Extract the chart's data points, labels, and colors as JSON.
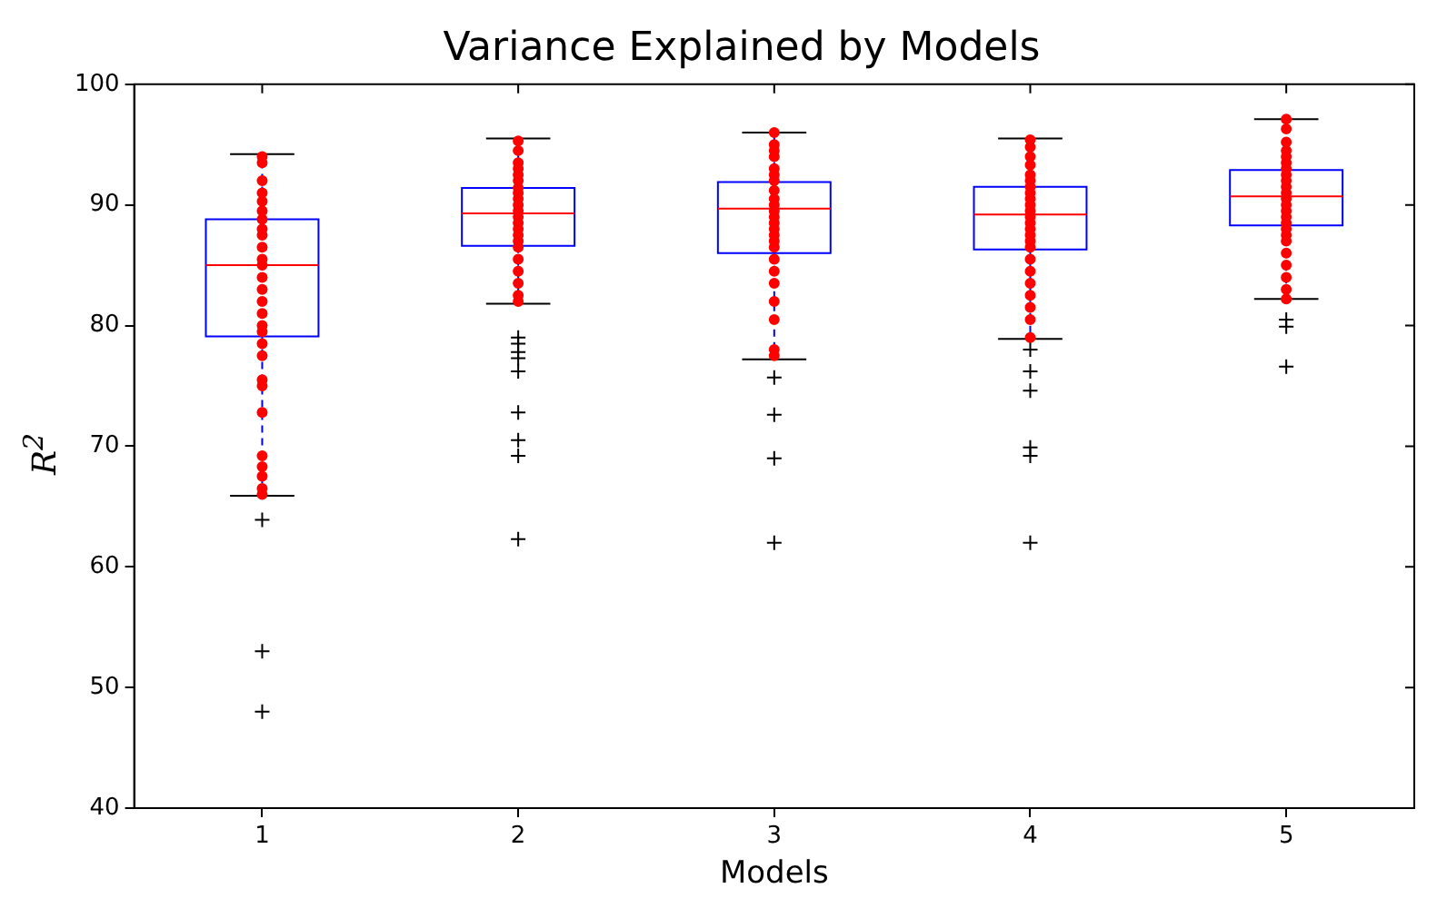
{
  "chart_data": {
    "type": "box",
    "title": "Variance Explained by Models",
    "xlabel": "Models",
    "ylabel": "R$^{2}$",
    "categories": [
      "1",
      "2",
      "3",
      "4",
      "5"
    ],
    "ylim": [
      40,
      100
    ],
    "yticks": [
      40,
      50,
      60,
      70,
      80,
      90,
      100
    ],
    "grid": false,
    "legend": false,
    "series": [
      {
        "type": "box",
        "color": "#0000ff",
        "boxes": [
          {
            "low": 65.9,
            "q1": 79.1,
            "median": 85.0,
            "q3": 88.8,
            "high": 94.2,
            "outliers": [
              63.9,
              53.0,
              48.0
            ]
          },
          {
            "low": 81.8,
            "q1": 86.6,
            "median": 89.3,
            "q3": 91.4,
            "high": 95.5,
            "outliers": [
              79.0,
              78.5,
              77.8,
              77.3,
              76.2,
              72.8,
              70.5,
              69.2,
              62.3
            ]
          },
          {
            "low": 77.2,
            "q1": 86.0,
            "median": 89.7,
            "q3": 91.9,
            "high": 96.0,
            "outliers": [
              75.7,
              72.6,
              69.0,
              62.0
            ]
          },
          {
            "low": 78.9,
            "q1": 86.3,
            "median": 89.2,
            "q3": 91.5,
            "high": 95.5,
            "outliers": [
              78.0,
              76.2,
              74.6,
              69.9,
              69.2,
              62.0
            ]
          },
          {
            "low": 82.2,
            "q1": 88.3,
            "median": 90.7,
            "q3": 92.9,
            "high": 97.1,
            "outliers": [
              80.5,
              79.9,
              76.6
            ]
          }
        ]
      },
      {
        "type": "scatter",
        "color": "#ff0000",
        "marker": "circle",
        "x": [
          "1",
          "1",
          "1",
          "1",
          "1",
          "1",
          "1",
          "1",
          "1",
          "1",
          "1",
          "1",
          "1",
          "1",
          "1",
          "1",
          "1",
          "1",
          "1",
          "1",
          "1",
          "1",
          "1",
          "1",
          "1",
          "1",
          "1",
          "1"
        ],
        "values": [
          94,
          93.5,
          92,
          91,
          90.3,
          89.5,
          88.8,
          88,
          87.5,
          86.5,
          85.5,
          85,
          84,
          83,
          82,
          81,
          80,
          79.5,
          78.5,
          77.5,
          75.5,
          75,
          72.8,
          69.2,
          68.3,
          67.5,
          66.5,
          66
        ]
      },
      {
        "type": "scatter",
        "color": "#ff0000",
        "marker": "circle",
        "x": [
          "2",
          "2",
          "2",
          "2",
          "2",
          "2",
          "2",
          "2",
          "2",
          "2",
          "2",
          "2",
          "2",
          "2",
          "2",
          "2",
          "2",
          "2",
          "2",
          "2",
          "2",
          "2"
        ],
        "values": [
          95.3,
          94.5,
          93.5,
          93,
          92.5,
          92,
          91.4,
          91,
          90.5,
          90,
          89.5,
          89,
          88.5,
          88,
          87.5,
          87,
          86.5,
          85.5,
          84.5,
          83.5,
          82.5,
          82
        ]
      },
      {
        "type": "scatter",
        "color": "#ff0000",
        "marker": "circle",
        "x": [
          "3",
          "3",
          "3",
          "3",
          "3",
          "3",
          "3",
          "3",
          "3",
          "3",
          "3",
          "3",
          "3",
          "3",
          "3",
          "3",
          "3",
          "3",
          "3",
          "3",
          "3",
          "3",
          "3",
          "3"
        ],
        "values": [
          96,
          95,
          94.5,
          94,
          93,
          92.5,
          92,
          91.2,
          90.5,
          90,
          89.5,
          89,
          88.5,
          88,
          87.5,
          87,
          86.5,
          85.5,
          84.5,
          83.5,
          82,
          80.5,
          78,
          77.5
        ]
      },
      {
        "type": "scatter",
        "color": "#ff0000",
        "marker": "circle",
        "x": [
          "4",
          "4",
          "4",
          "4",
          "4",
          "4",
          "4",
          "4",
          "4",
          "4",
          "4",
          "4",
          "4",
          "4",
          "4",
          "4",
          "4",
          "4",
          "4",
          "4",
          "4",
          "4",
          "4",
          "4"
        ],
        "values": [
          95.4,
          94.8,
          94,
          93.3,
          92.5,
          92,
          91.5,
          91,
          90.5,
          90,
          89.5,
          89,
          88.5,
          88,
          87.5,
          87,
          86.5,
          85.5,
          84.5,
          83.5,
          82.5,
          81.5,
          80.5,
          79
        ]
      },
      {
        "type": "scatter",
        "color": "#ff0000",
        "marker": "circle",
        "x": [
          "5",
          "5",
          "5",
          "5",
          "5",
          "5",
          "5",
          "5",
          "5",
          "5",
          "5",
          "5",
          "5",
          "5",
          "5",
          "5",
          "5",
          "5",
          "5",
          "5",
          "5",
          "5",
          "5",
          "5"
        ],
        "values": [
          97.1,
          96.3,
          95.2,
          94.5,
          94,
          93.5,
          93,
          92.5,
          92,
          91.5,
          91,
          90.5,
          90,
          89.5,
          89,
          88.5,
          88,
          87.5,
          87,
          86,
          85,
          84,
          83,
          82.2
        ]
      }
    ]
  }
}
